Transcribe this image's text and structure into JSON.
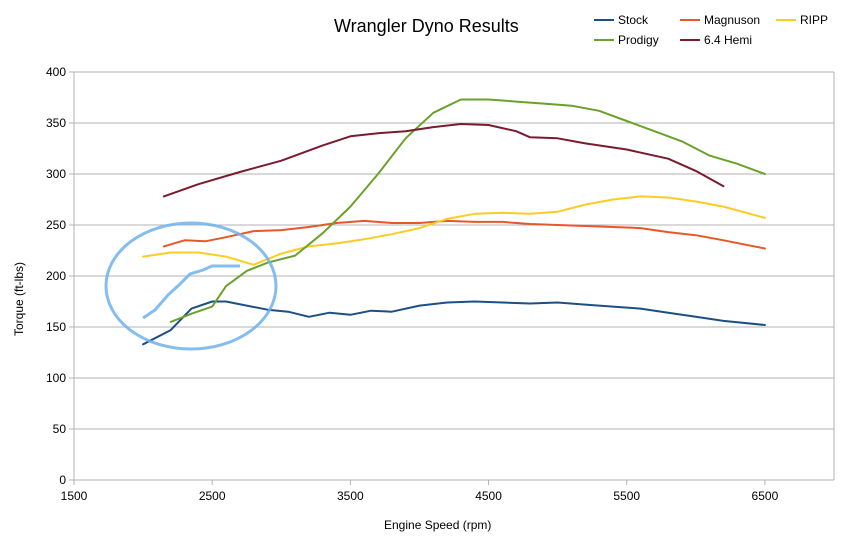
{
  "chart_data": {
    "type": "line",
    "title": "Wrangler Dyno Results",
    "xlabel": "Engine Speed (rpm)",
    "ylabel": "Torque (ft-lbs)",
    "xlim": [
      1500,
      7000
    ],
    "ylim": [
      0,
      400
    ],
    "xticks": [
      1500,
      2500,
      3500,
      4500,
      5500,
      6500
    ],
    "yticks": [
      0,
      50,
      100,
      150,
      200,
      250,
      300,
      350,
      400
    ],
    "grid": "horizontal",
    "legend_position": "top-right",
    "series": [
      {
        "name": "Stock",
        "color": "#1c4f86",
        "x": [
          2000,
          2200,
          2350,
          2500,
          2600,
          2750,
          2900,
          3050,
          3200,
          3350,
          3500,
          3650,
          3800,
          4000,
          4200,
          4400,
          4600,
          4800,
          5000,
          5200,
          5400,
          5600,
          5800,
          6000,
          6200,
          6500
        ],
        "y": [
          133,
          147,
          168,
          175,
          175,
          171,
          167,
          165,
          160,
          164,
          162,
          166,
          165,
          171,
          174,
          175,
          174,
          173,
          174,
          172,
          170,
          168,
          164,
          160,
          156,
          152
        ]
      },
      {
        "name": "Magnuson",
        "color": "#e8572a",
        "x": [
          2150,
          2300,
          2450,
          2600,
          2800,
          3000,
          3200,
          3400,
          3600,
          3800,
          4000,
          4200,
          4400,
          4600,
          4800,
          5000,
          5200,
          5400,
          5600,
          5800,
          6000,
          6200,
          6500
        ],
        "y": [
          229,
          235,
          234,
          238,
          244,
          245,
          248,
          252,
          254,
          252,
          252,
          254,
          253,
          253,
          251,
          250,
          249,
          248,
          247,
          243,
          240,
          235,
          227
        ]
      },
      {
        "name": "RIPP",
        "color": "#fccc25",
        "x": [
          2000,
          2200,
          2400,
          2600,
          2800,
          3000,
          3200,
          3400,
          3600,
          3800,
          4000,
          4200,
          4400,
          4600,
          4800,
          5000,
          5200,
          5400,
          5600,
          5800,
          6000,
          6200,
          6500
        ],
        "y": [
          219,
          223,
          223,
          219,
          211,
          222,
          229,
          232,
          236,
          241,
          247,
          256,
          261,
          262,
          261,
          263,
          270,
          275,
          278,
          277,
          273,
          268,
          257
        ]
      },
      {
        "name": "Prodigy",
        "color": "#6aa12a",
        "x": [
          2200,
          2350,
          2500,
          2600,
          2750,
          2900,
          3100,
          3300,
          3500,
          3700,
          3900,
          4100,
          4300,
          4500,
          4700,
          4900,
          5100,
          5300,
          5500,
          5700,
          5900,
          6100,
          6300,
          6500
        ],
        "y": [
          155,
          163,
          170,
          190,
          205,
          213,
          220,
          242,
          268,
          300,
          335,
          360,
          373,
          373,
          371,
          369,
          367,
          362,
          352,
          342,
          332,
          318,
          310,
          300
        ]
      },
      {
        "name": "6.4 Hemi",
        "color": "#7a1b2e",
        "x": [
          2150,
          2400,
          2700,
          3000,
          3300,
          3500,
          3700,
          3900,
          4100,
          4300,
          4500,
          4700,
          4800,
          5000,
          5200,
          5500,
          5800,
          6000,
          6200
        ],
        "y": [
          278,
          290,
          302,
          313,
          328,
          337,
          340,
          342,
          346,
          349,
          348,
          342,
          336,
          335,
          330,
          324,
          315,
          303,
          288
        ]
      }
    ]
  }
}
